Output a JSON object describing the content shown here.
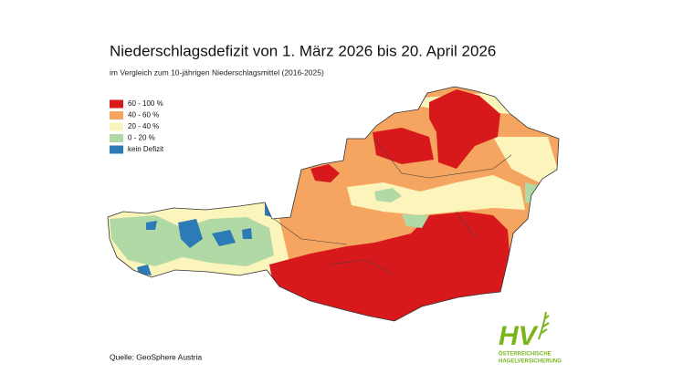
{
  "title": "Niederschlagsdefizit von 1. März 2026 bis 20. April 2026",
  "subtitle": "im Vergleich zum 10-jährigen Niederschlagsmittel (2016-2025)",
  "legend": {
    "items": [
      {
        "label": "60 - 100 %",
        "color": "#d7191c"
      },
      {
        "label": "40 - 60 %",
        "color": "#f5a55f"
      },
      {
        "label": "20 - 40 %",
        "color": "#fbf5bb"
      },
      {
        "label": "0 - 20 %",
        "color": "#b0d9a6"
      },
      {
        "label": "kein Defizit",
        "color": "#2c7bb6"
      }
    ]
  },
  "source": "Quelle: GeoSphere Austria",
  "logo": {
    "mark": "HV",
    "line1": "ÖSTERREICHISCHE",
    "line2": "HAGELVERSICHERUNG",
    "color": "#7ab51d"
  }
}
